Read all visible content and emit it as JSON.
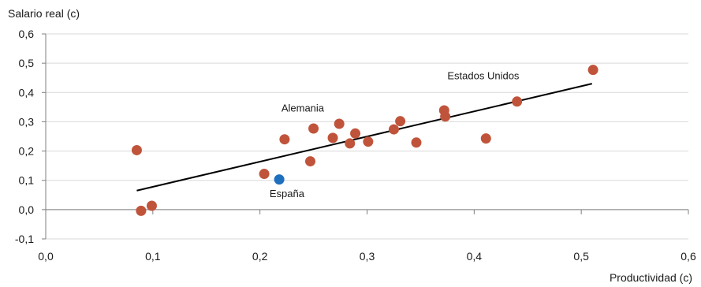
{
  "chart_data": {
    "type": "scatter",
    "title": "",
    "xlabel": "Productividad (c)",
    "ylabel": "Salario real (c)",
    "xlim": [
      0.0,
      0.6
    ],
    "ylim": [
      -0.1,
      0.6
    ],
    "x_ticks": [
      0.0,
      0.1,
      0.2,
      0.3,
      0.4,
      0.5,
      0.6
    ],
    "x_tick_labels": [
      "0,0",
      "0,1",
      "0,2",
      "0,3",
      "0,4",
      "0,5",
      "0,6"
    ],
    "y_ticks": [
      -0.1,
      0.0,
      0.1,
      0.2,
      0.3,
      0.4,
      0.5,
      0.6
    ],
    "y_tick_labels": [
      "-0,1",
      "0,0",
      "0,1",
      "0,2",
      "0,3",
      "0,4",
      "0,5",
      "0,6"
    ],
    "grid": true,
    "legend": "none",
    "colors": {
      "points": "#c0543b",
      "highlight": "#1f6fbf",
      "trendline": "#000000",
      "grid": "#d9d9d9"
    },
    "series": [
      {
        "values": [
          {
            "x": 0.085,
            "y": 0.203
          },
          {
            "x": 0.089,
            "y": -0.004
          },
          {
            "x": 0.099,
            "y": 0.013
          },
          {
            "x": 0.204,
            "y": 0.122
          },
          {
            "x": 0.223,
            "y": 0.24
          },
          {
            "x": 0.247,
            "y": 0.165
          },
          {
            "x": 0.25,
            "y": 0.277
          },
          {
            "x": 0.268,
            "y": 0.245
          },
          {
            "x": 0.274,
            "y": 0.293
          },
          {
            "x": 0.284,
            "y": 0.226
          },
          {
            "x": 0.289,
            "y": 0.26
          },
          {
            "x": 0.301,
            "y": 0.232
          },
          {
            "x": 0.325,
            "y": 0.274
          },
          {
            "x": 0.331,
            "y": 0.302
          },
          {
            "x": 0.346,
            "y": 0.229
          },
          {
            "x": 0.372,
            "y": 0.339
          },
          {
            "x": 0.373,
            "y": 0.318
          },
          {
            "x": 0.411,
            "y": 0.243
          },
          {
            "x": 0.44,
            "y": 0.369
          },
          {
            "x": 0.511,
            "y": 0.477
          }
        ]
      },
      {
        "values": [
          {
            "x": 0.218,
            "y": 0.103
          }
        ]
      }
    ],
    "trendline": {
      "x": [
        0.085,
        0.51
      ],
      "y": [
        0.065,
        0.43
      ]
    },
    "annotations": [
      {
        "text": "Estados Unidos",
        "x": 0.375,
        "y": 0.445
      },
      {
        "text": "Alemania",
        "x": 0.22,
        "y": 0.335
      },
      {
        "text": "España",
        "x": 0.209,
        "y": 0.043
      }
    ]
  }
}
